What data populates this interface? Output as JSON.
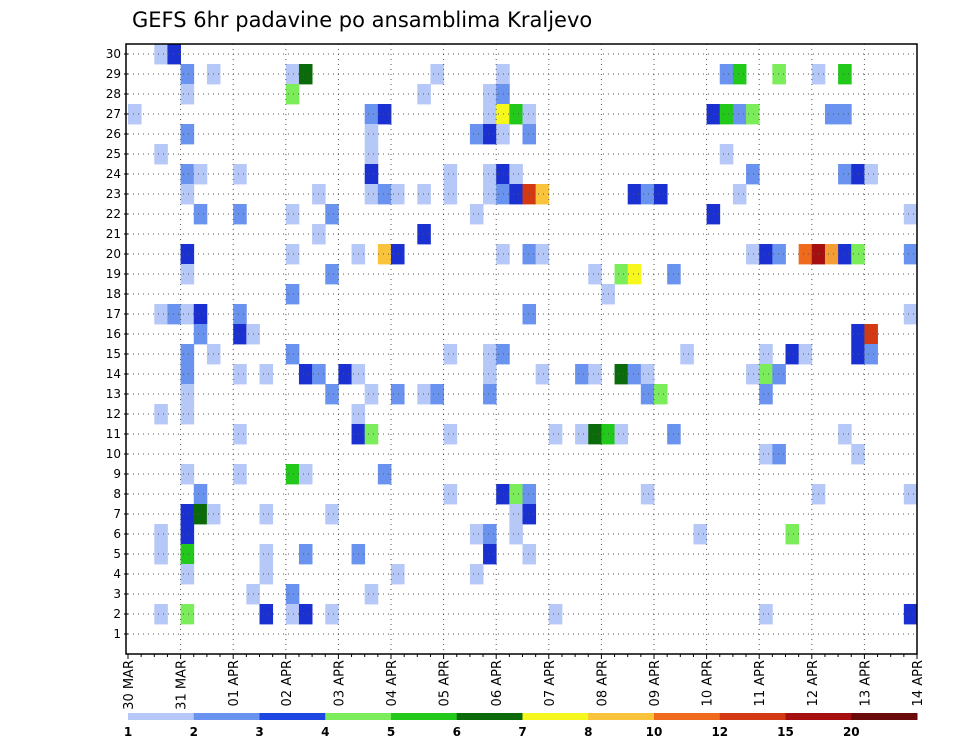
{
  "chart_data": {
    "type": "heatmap",
    "title": "GEFS 6hr padavine po ansamblima Kraljevo",
    "y_tick_labels": [
      "1",
      "2",
      "3",
      "4",
      "5",
      "6",
      "7",
      "8",
      "9",
      "10",
      "11",
      "12",
      "13",
      "14",
      "15",
      "16",
      "17",
      "18",
      "19",
      "20",
      "21",
      "22",
      "23",
      "24",
      "25",
      "26",
      "27",
      "28",
      "29",
      "30"
    ],
    "x_tick_labels": [
      "30 MAR",
      "31 MAR",
      "01 APR",
      "02 APR",
      "03 APR",
      "04 APR",
      "05 APR",
      "06 APR",
      "07 APR",
      "08 APR",
      "09 APR",
      "10 APR",
      "11 APR",
      "12 APR",
      "13 APR",
      "14 APR"
    ],
    "x_range": [
      "30 MAR 00Z",
      "14 APR 00Z"
    ],
    "time_step_hours": 6,
    "grid": "dotted",
    "colorbar": {
      "position": "bottom",
      "labels": [
        "1",
        "2",
        "3",
        "4",
        "5",
        "6",
        "7",
        "8",
        "10",
        "12",
        "15",
        "20"
      ],
      "colors": [
        "#b6c8f7",
        "#6a93f0",
        "#1e46e0",
        "#1a30d0",
        "#7ced5a",
        "#22c81a",
        "#14a012",
        "#0b6a0a",
        "#f6f71c",
        "#f9c33c",
        "#f59d35",
        "#ef6a1c",
        "#d33a14",
        "#a50f0f",
        "#6b0a0a"
      ]
    },
    "cells": [
      [
        "03-30 12Z",
        30,
        "#b6c8f7"
      ],
      [
        "03-30 18Z",
        30,
        "#1a30d0"
      ],
      [
        "03-31 00Z",
        29,
        "#6a93f0"
      ],
      [
        "03-31 12Z",
        29,
        "#b6c8f7"
      ],
      [
        "04-02 00Z",
        29,
        "#b6c8f7"
      ],
      [
        "04-02 06Z",
        29,
        "#0b6a0a"
      ],
      [
        "04-04 18Z",
        29,
        "#b6c8f7"
      ],
      [
        "04-06 00Z",
        29,
        "#b6c8f7"
      ],
      [
        "04-10 06Z",
        29,
        "#6a93f0"
      ],
      [
        "04-10 12Z",
        29,
        "#22c81a"
      ],
      [
        "04-11 06Z",
        29,
        "#7ced5a"
      ],
      [
        "04-12 00Z",
        29,
        "#b6c8f7"
      ],
      [
        "04-12 12Z",
        29,
        "#22c81a"
      ],
      [
        "03-31 00Z",
        28,
        "#b6c8f7"
      ],
      [
        "04-02 00Z",
        28,
        "#7ced5a"
      ],
      [
        "04-04 12Z",
        28,
        "#b6c8f7"
      ],
      [
        "04-05 18Z",
        28,
        "#b6c8f7"
      ],
      [
        "04-06 00Z",
        28,
        "#6a93f0"
      ],
      [
        "03-30 00Z",
        27,
        "#b6c8f7"
      ],
      [
        "04-03 12Z",
        27,
        "#6a93f0"
      ],
      [
        "04-03 18Z",
        27,
        "#1a30d0"
      ],
      [
        "04-05 18Z",
        27,
        "#b6c8f7"
      ],
      [
        "04-06 00Z",
        27,
        "#f6f71c"
      ],
      [
        "04-06 06Z",
        27,
        "#22c81a"
      ],
      [
        "04-06 12Z",
        27,
        "#b6c8f7"
      ],
      [
        "04-10 00Z",
        27,
        "#1a30d0"
      ],
      [
        "04-10 06Z",
        27,
        "#22c81a"
      ],
      [
        "04-10 12Z",
        27,
        "#6a93f0"
      ],
      [
        "04-10 18Z",
        27,
        "#7ced5a"
      ],
      [
        "04-12 06Z",
        27,
        "#6a93f0"
      ],
      [
        "04-12 12Z",
        27,
        "#6a93f0"
      ],
      [
        "03-31 00Z",
        26,
        "#6a93f0"
      ],
      [
        "04-03 12Z",
        26,
        "#b6c8f7"
      ],
      [
        "04-05 12Z",
        26,
        "#6a93f0"
      ],
      [
        "04-05 18Z",
        26,
        "#1a30d0"
      ],
      [
        "04-06 00Z",
        26,
        "#b6c8f7"
      ],
      [
        "04-06 12Z",
        26,
        "#6a93f0"
      ],
      [
        "03-30 12Z",
        25,
        "#b6c8f7"
      ],
      [
        "04-03 12Z",
        25,
        "#b6c8f7"
      ],
      [
        "04-10 06Z",
        25,
        "#b6c8f7"
      ],
      [
        "03-31 00Z",
        24,
        "#6a93f0"
      ],
      [
        "03-31 06Z",
        24,
        "#b6c8f7"
      ],
      [
        "04-01 00Z",
        24,
        "#b6c8f7"
      ],
      [
        "04-03 12Z",
        24,
        "#1a30d0"
      ],
      [
        "04-05 00Z",
        24,
        "#b6c8f7"
      ],
      [
        "04-05 18Z",
        24,
        "#b6c8f7"
      ],
      [
        "04-06 00Z",
        24,
        "#1a30d0"
      ],
      [
        "04-06 06Z",
        24,
        "#b6c8f7"
      ],
      [
        "04-10 18Z",
        24,
        "#6a93f0"
      ],
      [
        "04-12 12Z",
        24,
        "#6a93f0"
      ],
      [
        "04-12 18Z",
        24,
        "#1a30d0"
      ],
      [
        "04-13 00Z",
        24,
        "#b6c8f7"
      ],
      [
        "03-31 00Z",
        23,
        "#b6c8f7"
      ],
      [
        "04-02 12Z",
        23,
        "#b6c8f7"
      ],
      [
        "04-03 12Z",
        23,
        "#b6c8f7"
      ],
      [
        "04-03 18Z",
        23,
        "#6a93f0"
      ],
      [
        "04-04 00Z",
        23,
        "#b6c8f7"
      ],
      [
        "04-04 12Z",
        23,
        "#b6c8f7"
      ],
      [
        "04-05 00Z",
        23,
        "#b6c8f7"
      ],
      [
        "04-05 18Z",
        23,
        "#b6c8f7"
      ],
      [
        "04-06 00Z",
        23,
        "#6a93f0"
      ],
      [
        "04-06 06Z",
        23,
        "#1a30d0"
      ],
      [
        "04-06 12Z",
        23,
        "#d33a14"
      ],
      [
        "04-06 18Z",
        23,
        "#f9c33c"
      ],
      [
        "04-08 12Z",
        23,
        "#1a30d0"
      ],
      [
        "04-08 18Z",
        23,
        "#6a93f0"
      ],
      [
        "04-09 00Z",
        23,
        "#1a30d0"
      ],
      [
        "04-10 12Z",
        23,
        "#b6c8f7"
      ],
      [
        "03-31 06Z",
        22,
        "#6a93f0"
      ],
      [
        "04-01 00Z",
        22,
        "#6a93f0"
      ],
      [
        "04-02 00Z",
        22,
        "#b6c8f7"
      ],
      [
        "04-02 18Z",
        22,
        "#6a93f0"
      ],
      [
        "04-05 12Z",
        22,
        "#b6c8f7"
      ],
      [
        "04-10 00Z",
        22,
        "#1a30d0"
      ],
      [
        "04-13 18Z",
        22,
        "#b6c8f7"
      ],
      [
        "04-02 12Z",
        21,
        "#b6c8f7"
      ],
      [
        "04-04 12Z",
        21,
        "#1a30d0"
      ],
      [
        "03-31 00Z",
        20,
        "#1a30d0"
      ],
      [
        "04-02 00Z",
        20,
        "#b6c8f7"
      ],
      [
        "04-03 06Z",
        20,
        "#b6c8f7"
      ],
      [
        "04-03 18Z",
        20,
        "#f9c33c"
      ],
      [
        "04-04 00Z",
        20,
        "#1a30d0"
      ],
      [
        "04-06 00Z",
        20,
        "#b6c8f7"
      ],
      [
        "04-06 12Z",
        20,
        "#6a93f0"
      ],
      [
        "04-06 18Z",
        20,
        "#b6c8f7"
      ],
      [
        "04-10 18Z",
        20,
        "#b6c8f7"
      ],
      [
        "04-11 00Z",
        20,
        "#1a30d0"
      ],
      [
        "04-11 06Z",
        20,
        "#6a93f0"
      ],
      [
        "04-11 18Z",
        20,
        "#ef6a1c"
      ],
      [
        "04-12 00Z",
        20,
        "#a50f0f"
      ],
      [
        "04-12 06Z",
        20,
        "#f59d35"
      ],
      [
        "04-12 12Z",
        20,
        "#1a30d0"
      ],
      [
        "04-12 18Z",
        20,
        "#7ced5a"
      ],
      [
        "04-13 18Z",
        20,
        "#6a93f0"
      ],
      [
        "03-31 00Z",
        19,
        "#b6c8f7"
      ],
      [
        "04-02 18Z",
        19,
        "#6a93f0"
      ],
      [
        "04-07 18Z",
        19,
        "#b6c8f7"
      ],
      [
        "04-08 06Z",
        19,
        "#7ced5a"
      ],
      [
        "04-08 12Z",
        19,
        "#f6f71c"
      ],
      [
        "04-09 06Z",
        19,
        "#6a93f0"
      ],
      [
        "04-02 00Z",
        18,
        "#6a93f0"
      ],
      [
        "04-08 00Z",
        18,
        "#b6c8f7"
      ],
      [
        "03-30 12Z",
        17,
        "#b6c8f7"
      ],
      [
        "03-30 18Z",
        17,
        "#6a93f0"
      ],
      [
        "03-31 00Z",
        17,
        "#b6c8f7"
      ],
      [
        "03-31 06Z",
        17,
        "#1a30d0"
      ],
      [
        "04-01 00Z",
        17,
        "#6a93f0"
      ],
      [
        "04-06 12Z",
        17,
        "#6a93f0"
      ],
      [
        "04-13 18Z",
        17,
        "#b6c8f7"
      ],
      [
        "03-31 06Z",
        16,
        "#6a93f0"
      ],
      [
        "04-01 00Z",
        16,
        "#1a30d0"
      ],
      [
        "04-01 06Z",
        16,
        "#b6c8f7"
      ],
      [
        "04-12 18Z",
        16,
        "#1a30d0"
      ],
      [
        "04-13 00Z",
        16,
        "#d33a14"
      ],
      [
        "03-31 00Z",
        15,
        "#6a93f0"
      ],
      [
        "03-31 12Z",
        15,
        "#b6c8f7"
      ],
      [
        "04-02 00Z",
        15,
        "#6a93f0"
      ],
      [
        "04-05 00Z",
        15,
        "#b6c8f7"
      ],
      [
        "04-05 18Z",
        15,
        "#b6c8f7"
      ],
      [
        "04-06 00Z",
        15,
        "#6a93f0"
      ],
      [
        "04-09 12Z",
        15,
        "#b6c8f7"
      ],
      [
        "04-11 00Z",
        15,
        "#b6c8f7"
      ],
      [
        "04-11 12Z",
        15,
        "#1a30d0"
      ],
      [
        "04-11 18Z",
        15,
        "#b6c8f7"
      ],
      [
        "04-12 18Z",
        15,
        "#1a30d0"
      ],
      [
        "04-13 00Z",
        15,
        "#6a93f0"
      ],
      [
        "03-31 00Z",
        14,
        "#6a93f0"
      ],
      [
        "04-01 00Z",
        14,
        "#b6c8f7"
      ],
      [
        "04-01 12Z",
        14,
        "#b6c8f7"
      ],
      [
        "04-02 06Z",
        14,
        "#1a30d0"
      ],
      [
        "04-02 12Z",
        14,
        "#6a93f0"
      ],
      [
        "04-03 00Z",
        14,
        "#1a30d0"
      ],
      [
        "04-03 06Z",
        14,
        "#b6c8f7"
      ],
      [
        "04-05 18Z",
        14,
        "#b6c8f7"
      ],
      [
        "04-06 18Z",
        14,
        "#b6c8f7"
      ],
      [
        "04-07 12Z",
        14,
        "#6a93f0"
      ],
      [
        "04-07 18Z",
        14,
        "#b6c8f7"
      ],
      [
        "04-08 06Z",
        14,
        "#0b6a0a"
      ],
      [
        "04-08 12Z",
        14,
        "#6a93f0"
      ],
      [
        "04-08 18Z",
        14,
        "#b6c8f7"
      ],
      [
        "04-10 18Z",
        14,
        "#b6c8f7"
      ],
      [
        "04-11 00Z",
        14,
        "#7ced5a"
      ],
      [
        "04-11 06Z",
        14,
        "#6a93f0"
      ],
      [
        "03-31 00Z",
        13,
        "#b6c8f7"
      ],
      [
        "04-02 18Z",
        13,
        "#6a93f0"
      ],
      [
        "04-03 12Z",
        13,
        "#b6c8f7"
      ],
      [
        "04-04 00Z",
        13,
        "#6a93f0"
      ],
      [
        "04-04 12Z",
        13,
        "#b6c8f7"
      ],
      [
        "04-04 18Z",
        13,
        "#6a93f0"
      ],
      [
        "04-05 18Z",
        13,
        "#6a93f0"
      ],
      [
        "04-08 18Z",
        13,
        "#6a93f0"
      ],
      [
        "04-09 00Z",
        13,
        "#7ced5a"
      ],
      [
        "04-11 00Z",
        13,
        "#6a93f0"
      ],
      [
        "03-30 12Z",
        12,
        "#b6c8f7"
      ],
      [
        "03-31 00Z",
        12,
        "#b6c8f7"
      ],
      [
        "04-03 06Z",
        12,
        "#b6c8f7"
      ],
      [
        "04-01 00Z",
        11,
        "#b6c8f7"
      ],
      [
        "04-03 06Z",
        11,
        "#1a30d0"
      ],
      [
        "04-03 12Z",
        11,
        "#7ced5a"
      ],
      [
        "04-05 00Z",
        11,
        "#b6c8f7"
      ],
      [
        "04-07 00Z",
        11,
        "#b6c8f7"
      ],
      [
        "04-07 12Z",
        11,
        "#b6c8f7"
      ],
      [
        "04-07 18Z",
        11,
        "#0b6a0a"
      ],
      [
        "04-08 00Z",
        11,
        "#22c81a"
      ],
      [
        "04-08 06Z",
        11,
        "#b6c8f7"
      ],
      [
        "04-09 06Z",
        11,
        "#6a93f0"
      ],
      [
        "04-12 12Z",
        11,
        "#b6c8f7"
      ],
      [
        "04-11 00Z",
        10,
        "#b6c8f7"
      ],
      [
        "04-11 06Z",
        10,
        "#6a93f0"
      ],
      [
        "04-12 18Z",
        10,
        "#b6c8f7"
      ],
      [
        "03-31 00Z",
        9,
        "#b6c8f7"
      ],
      [
        "04-01 00Z",
        9,
        "#b6c8f7"
      ],
      [
        "04-02 00Z",
        9,
        "#22c81a"
      ],
      [
        "04-02 06Z",
        9,
        "#b6c8f7"
      ],
      [
        "04-03 18Z",
        9,
        "#6a93f0"
      ],
      [
        "03-31 06Z",
        8,
        "#6a93f0"
      ],
      [
        "04-05 00Z",
        8,
        "#b6c8f7"
      ],
      [
        "04-06 00Z",
        8,
        "#1a30d0"
      ],
      [
        "04-06 06Z",
        8,
        "#7ced5a"
      ],
      [
        "04-06 12Z",
        8,
        "#6a93f0"
      ],
      [
        "04-08 18Z",
        8,
        "#b6c8f7"
      ],
      [
        "04-12 00Z",
        8,
        "#b6c8f7"
      ],
      [
        "04-13 18Z",
        8,
        "#b6c8f7"
      ],
      [
        "03-31 00Z",
        7,
        "#1a30d0"
      ],
      [
        "03-31 06Z",
        7,
        "#0b6a0a"
      ],
      [
        "03-31 12Z",
        7,
        "#b6c8f7"
      ],
      [
        "04-01 12Z",
        7,
        "#b6c8f7"
      ],
      [
        "04-02 18Z",
        7,
        "#b6c8f7"
      ],
      [
        "04-06 06Z",
        7,
        "#b6c8f7"
      ],
      [
        "04-06 12Z",
        7,
        "#1a30d0"
      ],
      [
        "03-30 12Z",
        6,
        "#b6c8f7"
      ],
      [
        "03-31 00Z",
        6,
        "#1a30d0"
      ],
      [
        "04-05 12Z",
        6,
        "#b6c8f7"
      ],
      [
        "04-05 18Z",
        6,
        "#6a93f0"
      ],
      [
        "04-06 06Z",
        6,
        "#b6c8f7"
      ],
      [
        "04-09 18Z",
        6,
        "#b6c8f7"
      ],
      [
        "04-11 12Z",
        6,
        "#7ced5a"
      ],
      [
        "03-30 12Z",
        5,
        "#b6c8f7"
      ],
      [
        "03-31 00Z",
        5,
        "#22c81a"
      ],
      [
        "04-01 12Z",
        5,
        "#b6c8f7"
      ],
      [
        "04-02 06Z",
        5,
        "#6a93f0"
      ],
      [
        "04-03 06Z",
        5,
        "#6a93f0"
      ],
      [
        "04-05 18Z",
        5,
        "#1a30d0"
      ],
      [
        "04-06 12Z",
        5,
        "#b6c8f7"
      ],
      [
        "03-31 00Z",
        4,
        "#b6c8f7"
      ],
      [
        "04-01 12Z",
        4,
        "#b6c8f7"
      ],
      [
        "04-04 00Z",
        4,
        "#b6c8f7"
      ],
      [
        "04-05 12Z",
        4,
        "#b6c8f7"
      ],
      [
        "04-01 06Z",
        3,
        "#b6c8f7"
      ],
      [
        "04-02 00Z",
        3,
        "#6a93f0"
      ],
      [
        "04-03 12Z",
        3,
        "#b6c8f7"
      ],
      [
        "03-30 12Z",
        2,
        "#b6c8f7"
      ],
      [
        "03-31 00Z",
        2,
        "#7ced5a"
      ],
      [
        "04-01 12Z",
        2,
        "#1a30d0"
      ],
      [
        "04-02 00Z",
        2,
        "#b6c8f7"
      ],
      [
        "04-02 06Z",
        2,
        "#1a30d0"
      ],
      [
        "04-02 18Z",
        2,
        "#b6c8f7"
      ],
      [
        "04-07 00Z",
        2,
        "#b6c8f7"
      ],
      [
        "04-11 00Z",
        2,
        "#b6c8f7"
      ],
      [
        "04-13 18Z",
        2,
        "#1a30d0"
      ]
    ]
  }
}
